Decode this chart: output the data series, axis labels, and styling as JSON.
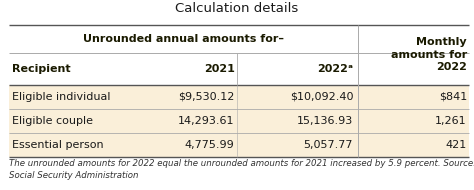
{
  "title": "Calculation details",
  "rows": [
    [
      "Eligible individual",
      "$9,530.12",
      "$10,092.40",
      "$841"
    ],
    [
      "Eligible couple",
      "14,293.61",
      "15,136.93",
      "1,261"
    ],
    [
      "Essential person",
      "4,775.99",
      "5,057.77",
      "421"
    ]
  ],
  "footnote": "The unrounded amounts for 2022 equal the unrounded amounts for 2021 increased by 5.9 percent. Source:\nSocial Security Administration",
  "bg_color": "#ffffff",
  "row_highlight": "#faefd9",
  "title_fontsize": 9.5,
  "header_fontsize": 8.0,
  "cell_fontsize": 8.0,
  "footnote_fontsize": 6.2,
  "header_color": "#1a1a00",
  "text_color": "#1a1a1a",
  "line_color": "#aaaaaa",
  "bold_line_color": "#555555"
}
